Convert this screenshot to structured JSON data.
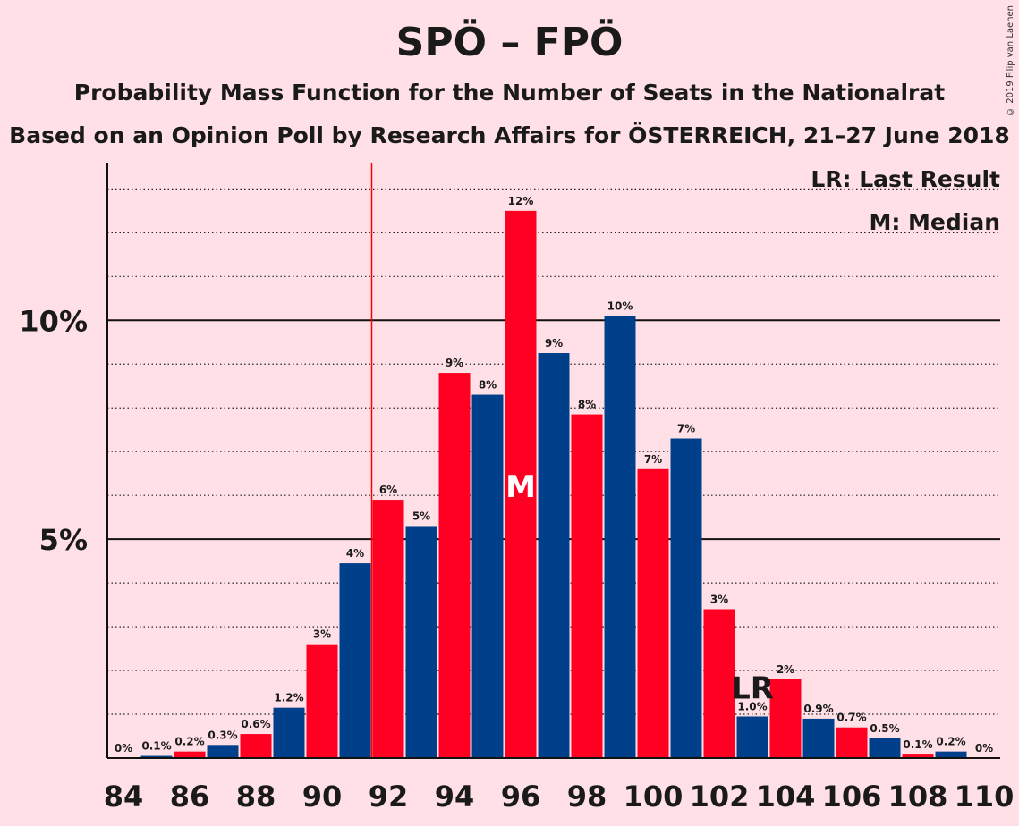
{
  "header": {
    "title": "SPÖ – FPÖ",
    "subtitle1": "Probability Mass Function for the Number of Seats in the Nationalrat",
    "subtitle2": "Based on an Opinion Poll by Research Affairs for ÖSTERREICH, 21–27 June 2018",
    "copyright": "© 2019 Filip van Laenen"
  },
  "legend": {
    "last_result": "LR: Last Result",
    "median": "M: Median"
  },
  "chart_data": {
    "type": "bar",
    "title": "SPÖ – FPÖ",
    "xlabel": "",
    "ylabel": "",
    "x": [
      84,
      85,
      86,
      87,
      88,
      89,
      90,
      91,
      92,
      93,
      94,
      95,
      96,
      97,
      98,
      99,
      100,
      101,
      102,
      103,
      104,
      105,
      106,
      107,
      108,
      109,
      110
    ],
    "values": [
      0,
      0.05,
      0.15,
      0.3,
      0.55,
      1.15,
      2.6,
      4.45,
      5.9,
      5.3,
      8.8,
      8.3,
      12.5,
      9.25,
      7.85,
      10.1,
      6.6,
      7.3,
      3.4,
      0.95,
      1.8,
      0.9,
      0.7,
      0.45,
      0.08,
      0.15,
      0
    ],
    "data_labels": [
      "0%",
      "0.1%",
      "0.2%",
      "0.3%",
      "0.6%",
      "1.2%",
      "3%",
      "4%",
      "6%",
      "5%",
      "9%",
      "8%",
      "12%",
      "9%",
      "8%",
      "10%",
      "7%",
      "7%",
      "3%",
      "1.0%",
      "2%",
      "0.9%",
      "0.7%",
      "0.5%",
      "0.1%",
      "0.2%",
      "0%"
    ],
    "x_tick_labels": [
      "84",
      "86",
      "88",
      "90",
      "92",
      "94",
      "96",
      "98",
      "100",
      "102",
      "104",
      "106",
      "108",
      "110"
    ],
    "y_tick_labels": [
      {
        "value": 5,
        "label": "5%"
      },
      {
        "value": 10,
        "label": "10%"
      }
    ],
    "ylim": [
      0,
      13.6
    ],
    "minor_grid_step": 1,
    "colors": [
      "#ff0022",
      "#003f8a"
    ],
    "median": {
      "x": 96,
      "label": "M"
    },
    "last_result": {
      "x": 103,
      "label": "LR",
      "line_color": "#ff0000",
      "line_between": [
        91,
        92
      ]
    },
    "grid": true,
    "legend_position": "top-right"
  }
}
